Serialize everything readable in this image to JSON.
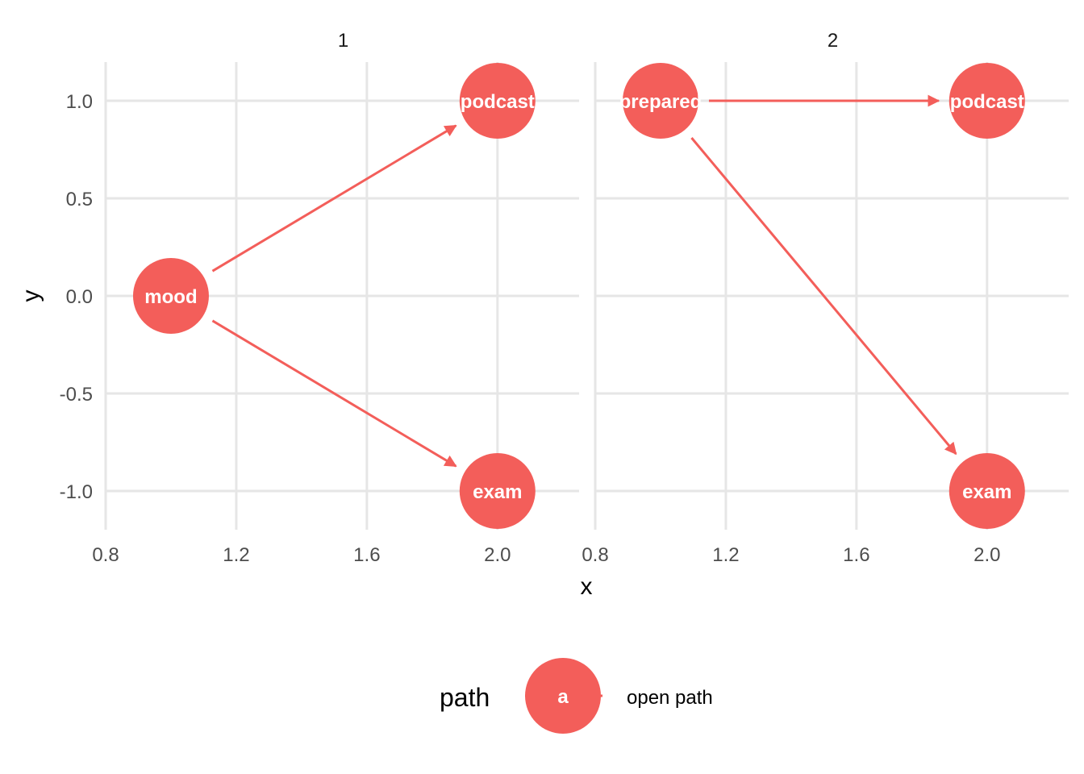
{
  "chart_data": {
    "type": "network",
    "xlabel": "x",
    "ylabel": "y",
    "xlim": [
      0.8,
      2.25
    ],
    "ylim": [
      -1.2,
      1.2
    ],
    "x_ticks": [
      "0.8",
      "1.2",
      "1.6",
      "2.0"
    ],
    "y_ticks": [
      "1.0",
      "0.5",
      "0.0",
      "-0.5",
      "-1.0"
    ],
    "x_tick_values": [
      0.8,
      1.2,
      1.6,
      2.0
    ],
    "y_tick_values": [
      1.0,
      0.5,
      0.0,
      -0.5,
      -1.0
    ],
    "grid": true,
    "facets": [
      {
        "label": "1",
        "nodes": [
          {
            "name": "mood",
            "label": "mood",
            "x": 1.0,
            "y": 0.0
          },
          {
            "name": "podcast",
            "label": "podcast",
            "x": 2.0,
            "y": 1.0
          },
          {
            "name": "exam",
            "label": "exam",
            "x": 2.0,
            "y": -1.0
          }
        ],
        "edges": [
          {
            "from": "mood",
            "to": "podcast"
          },
          {
            "from": "mood",
            "to": "exam"
          }
        ]
      },
      {
        "label": "2",
        "nodes": [
          {
            "name": "prepared",
            "label": "prepared",
            "x": 1.0,
            "y": 1.0
          },
          {
            "name": "podcast",
            "label": "podcast",
            "x": 2.0,
            "y": 1.0
          },
          {
            "name": "exam",
            "label": "exam",
            "x": 2.0,
            "y": -1.0
          }
        ],
        "edges": [
          {
            "from": "prepared",
            "to": "podcast"
          },
          {
            "from": "prepared",
            "to": "exam"
          }
        ]
      }
    ],
    "legend": {
      "title": "path",
      "placement": "bottom",
      "key_label": "a",
      "entries": [
        {
          "label": "open path",
          "color": "#f35e5a"
        }
      ]
    },
    "colors": {
      "node": "#f35e5a",
      "edge": "#f35e5a",
      "node_text": "#ffffff"
    }
  }
}
